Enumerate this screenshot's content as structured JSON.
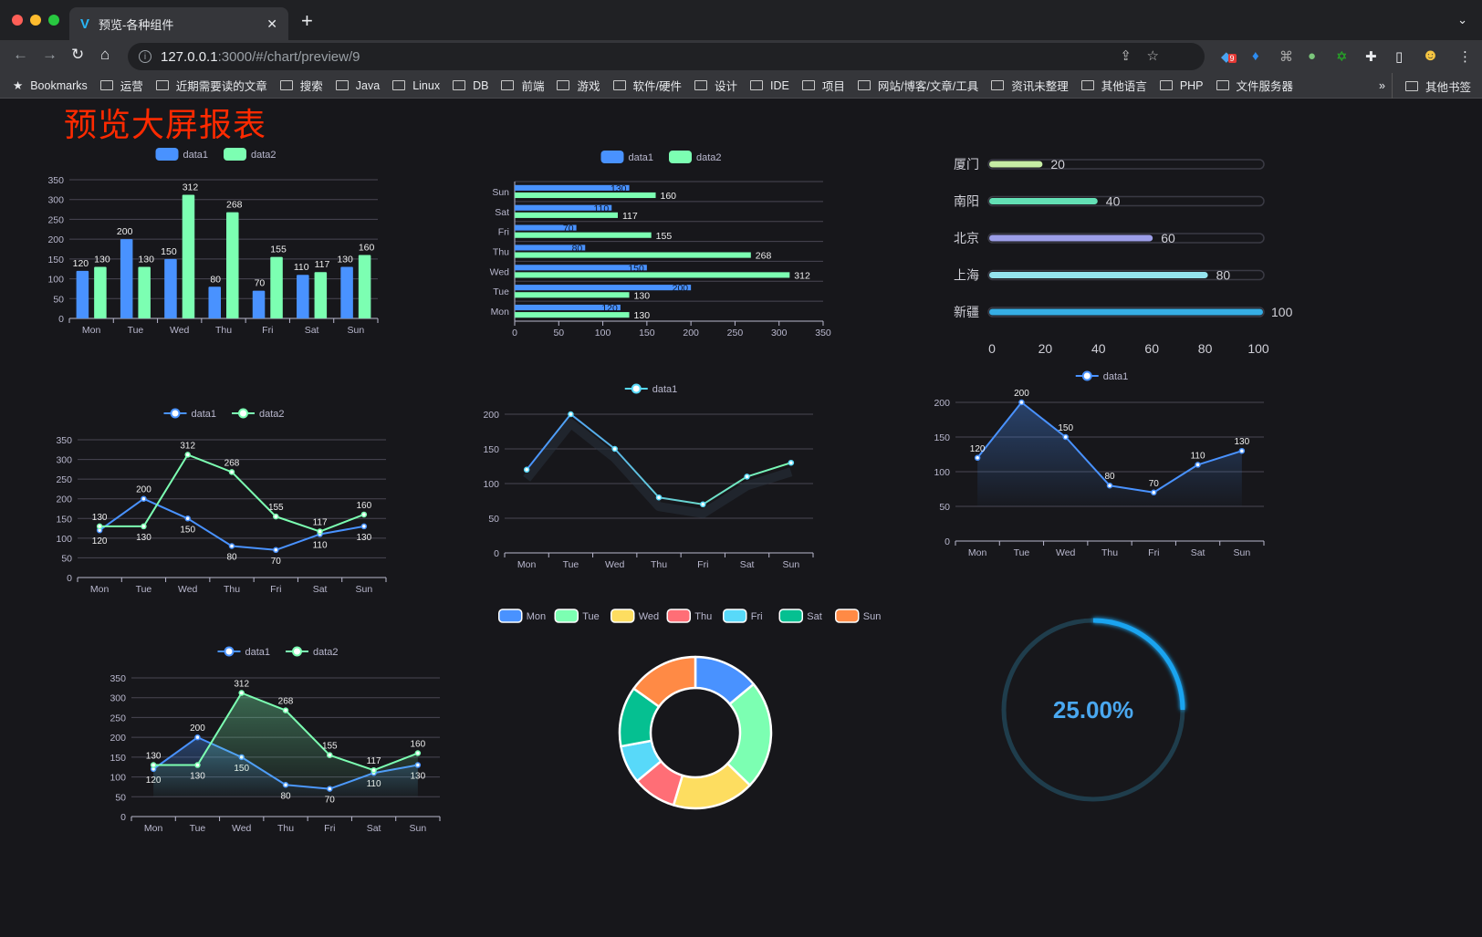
{
  "browser": {
    "tab_title": "预览-各种组件",
    "url_host": "127.0.0.1",
    "url_path": ":3000/#/chart/preview/9",
    "extension_badge": "9",
    "bookmarks": [
      "Bookmarks",
      "运营",
      "近期需要读的文章",
      "搜索",
      "Java",
      "Linux",
      "DB",
      "前端",
      "游戏",
      "软件/硬件",
      "设计",
      "IDE",
      "项目",
      "网站/博客/文章/工具",
      "资讯未整理",
      "其他语言",
      "PHP",
      "文件服务器"
    ],
    "more_label": "»",
    "other_bookmarks": "其他书签"
  },
  "page": {
    "title": "预览大屏报表"
  },
  "colors": {
    "data1": "#4992ff",
    "data2": "#7cffb2",
    "title": "#ff2a00",
    "background": "#17171b"
  },
  "chart_data": [
    {
      "type": "bar",
      "categories": [
        "Mon",
        "Tue",
        "Wed",
        "Thu",
        "Fri",
        "Sat",
        "Sun"
      ],
      "ylim": [
        0,
        350
      ],
      "ytick_step": 50,
      "grid": true,
      "legend": "top-center",
      "series": [
        {
          "name": "data1",
          "values": [
            120,
            200,
            150,
            80,
            70,
            110,
            130
          ],
          "color": "#4992ff"
        },
        {
          "name": "data2",
          "values": [
            130,
            130,
            312,
            268,
            155,
            117,
            160
          ],
          "color": "#7cffb2"
        }
      ],
      "data_labels": true
    },
    {
      "type": "bar",
      "orientation": "horizontal",
      "categories": [
        "Mon",
        "Tue",
        "Wed",
        "Thu",
        "Fri",
        "Sat",
        "Sun"
      ],
      "xlim": [
        0,
        350
      ],
      "xtick_step": 50,
      "grid": true,
      "legend": "top-center",
      "series": [
        {
          "name": "data1",
          "values": [
            120,
            200,
            150,
            80,
            70,
            110,
            130
          ],
          "color": "#4992ff"
        },
        {
          "name": "data2",
          "values": [
            130,
            130,
            312,
            268,
            155,
            117,
            160
          ],
          "color": "#7cffb2"
        }
      ],
      "data_labels": true
    },
    {
      "type": "bar",
      "orientation": "horizontal",
      "subtype": "progress",
      "categories": [
        "厦门",
        "南阳",
        "北京",
        "上海",
        "新疆"
      ],
      "values": [
        20,
        40,
        60,
        80,
        100
      ],
      "colors": [
        "#c6eda4",
        "#63e0b5",
        "#9c9ee8",
        "#94e3ee",
        "#36aee5"
      ],
      "xlim": [
        0,
        100
      ],
      "xtick_step": 20,
      "data_labels": true
    },
    {
      "type": "line",
      "categories": [
        "Mon",
        "Tue",
        "Wed",
        "Thu",
        "Fri",
        "Sat",
        "Sun"
      ],
      "ylim": [
        0,
        350
      ],
      "ytick_step": 50,
      "grid": true,
      "legend": "top-center",
      "series": [
        {
          "name": "data1",
          "values": [
            120,
            200,
            150,
            80,
            70,
            110,
            130
          ],
          "color": "#4992ff"
        },
        {
          "name": "data2",
          "values": [
            130,
            130,
            312,
            268,
            155,
            117,
            160
          ],
          "color": "#7cffb2"
        }
      ],
      "data_labels": true
    },
    {
      "type": "line",
      "categories": [
        "Mon",
        "Tue",
        "Wed",
        "Thu",
        "Fri",
        "Sat",
        "Sun"
      ],
      "ylim": [
        0,
        200
      ],
      "ytick_step": 50,
      "grid": true,
      "legend": "top-center",
      "series": [
        {
          "name": "data1",
          "values": [
            120,
            200,
            150,
            80,
            70,
            110,
            130
          ],
          "color": "#58d9f9"
        }
      ],
      "data_labels": false
    },
    {
      "type": "area",
      "categories": [
        "Mon",
        "Tue",
        "Wed",
        "Thu",
        "Fri",
        "Sat",
        "Sun"
      ],
      "ylim": [
        0,
        200
      ],
      "ytick_step": 50,
      "grid": true,
      "legend": "top-center",
      "series": [
        {
          "name": "data1",
          "values": [
            120,
            200,
            150,
            80,
            70,
            110,
            130
          ],
          "color": "#4992ff"
        }
      ],
      "data_labels": true
    },
    {
      "type": "area",
      "categories": [
        "Mon",
        "Tue",
        "Wed",
        "Thu",
        "Fri",
        "Sat",
        "Sun"
      ],
      "ylim": [
        0,
        350
      ],
      "ytick_step": 50,
      "grid": true,
      "legend": "top-center",
      "series": [
        {
          "name": "data1",
          "values": [
            120,
            200,
            150,
            80,
            70,
            110,
            130
          ],
          "color": "#4992ff"
        },
        {
          "name": "data2",
          "values": [
            130,
            130,
            312,
            268,
            155,
            117,
            160
          ],
          "color": "#7cffb2"
        }
      ],
      "data_labels": true
    },
    {
      "type": "pie",
      "subtype": "donut",
      "categories": [
        "Mon",
        "Tue",
        "Wed",
        "Thu",
        "Fri",
        "Sat",
        "Sun"
      ],
      "values": [
        120,
        200,
        150,
        80,
        70,
        110,
        130
      ],
      "colors": [
        "#4992ff",
        "#7cffb2",
        "#fddd60",
        "#ff6e76",
        "#58d9f9",
        "#05c091",
        "#ff8a45"
      ],
      "legend": "top-center"
    },
    {
      "type": "gauge",
      "value": 0.25,
      "label": "25.00%",
      "color": "#1aa4f0",
      "track_color": "#1f3d4c"
    }
  ]
}
